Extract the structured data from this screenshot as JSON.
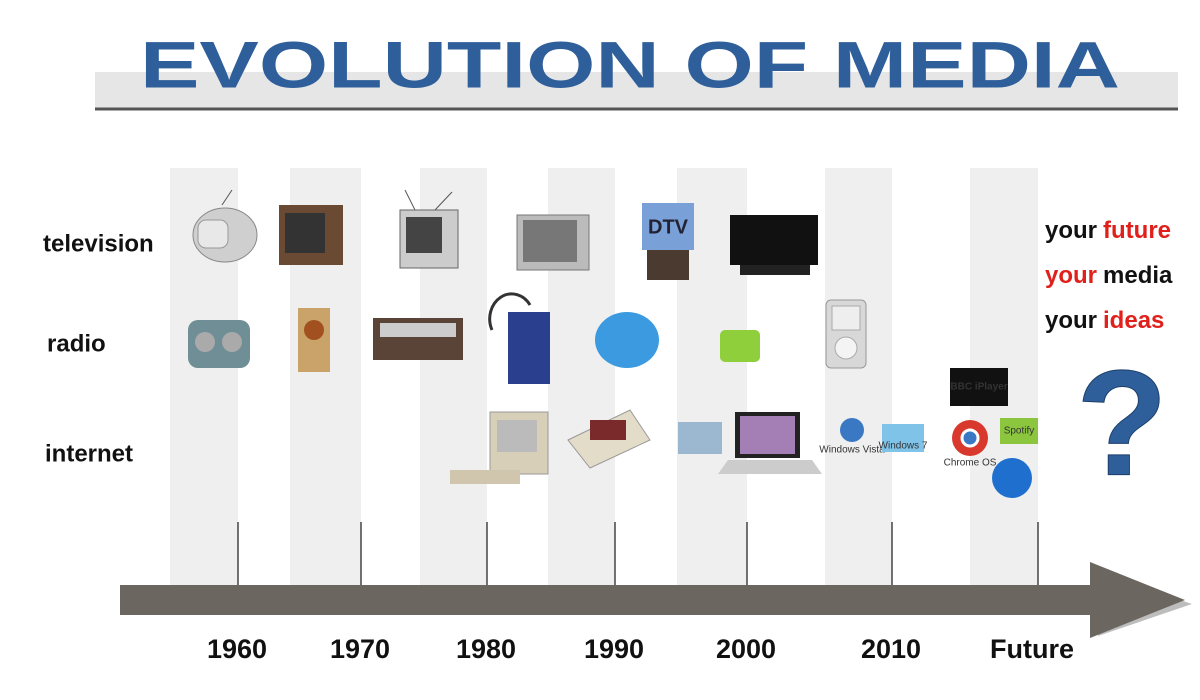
{
  "header": {
    "title": "EVOLUTION OF MEDIA"
  },
  "rows": [
    "television",
    "radio",
    "internet"
  ],
  "timeline": {
    "years": [
      "1960",
      "1970",
      "1980",
      "1990",
      "2000",
      "2010",
      "Future"
    ]
  },
  "logos": {
    "dtv": "DTV",
    "bbc": "BBC iPlayer",
    "vista": "Windows Vista",
    "win7": "Windows 7",
    "chrome": "Chrome OS",
    "spotify": "Spotify"
  },
  "slogans": [
    [
      {
        "text": "your",
        "color": "#111111"
      },
      {
        "text": "future",
        "color": "#e0201b"
      }
    ],
    [
      {
        "text": "your",
        "color": "#e0201b"
      },
      {
        "text": "media",
        "color": "#111111"
      }
    ],
    [
      {
        "text": "your",
        "color": "#111111"
      },
      {
        "text": "ideas",
        "color": "#e0201b"
      }
    ]
  ],
  "question": "?"
}
